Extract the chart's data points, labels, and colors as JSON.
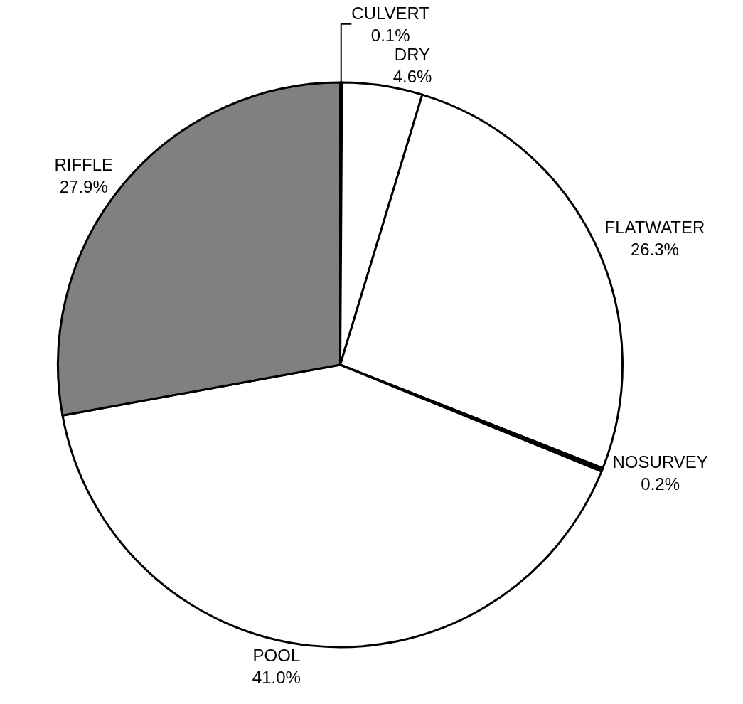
{
  "chart_data": {
    "type": "pie",
    "categories": [
      "CULVERT",
      "DRY",
      "FLATWATER",
      "NOSURVEY",
      "POOL",
      "RIFFLE"
    ],
    "values": [
      0.1,
      4.6,
      26.3,
      0.2,
      41.0,
      27.9
    ],
    "value_labels": [
      "0.1%",
      "4.6%",
      "26.3%",
      "0.2%",
      "41.0%",
      "27.9%"
    ],
    "colors": [
      "#ffffff",
      "#ffffff",
      "#ffffff",
      "#000000",
      "#ffffff",
      "#808080"
    ],
    "legend": false
  }
}
